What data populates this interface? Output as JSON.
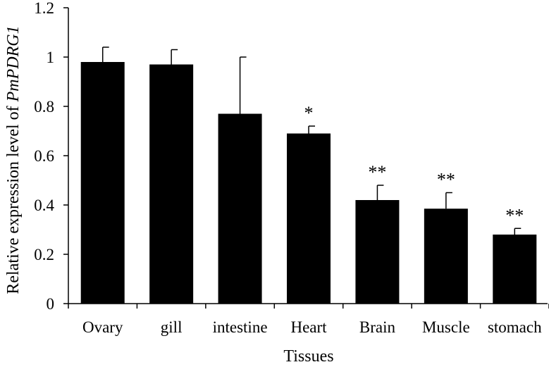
{
  "chart_data": {
    "type": "bar",
    "title": "",
    "xlabel": "Tissues",
    "ylabel_prefix": "Relative expression level of ",
    "ylabel_gene": "PmPDRG1",
    "categories": [
      "Ovary",
      "gill",
      "intestine",
      "Heart",
      "Brain",
      "Muscle",
      "stomach"
    ],
    "values": [
      0.98,
      0.97,
      0.77,
      0.69,
      0.42,
      0.385,
      0.28
    ],
    "errors": [
      0.06,
      0.06,
      0.23,
      0.03,
      0.06,
      0.065,
      0.025
    ],
    "significance": [
      "",
      "",
      "",
      "*",
      "**",
      "**",
      "**"
    ],
    "ylim": [
      0,
      1.2
    ],
    "yticks": [
      "0",
      "0.2",
      "0.4",
      "0.6",
      "0.8",
      "1",
      "1.2"
    ],
    "grid": false,
    "legend": "none",
    "colors": {
      "bar": "#000000",
      "axis": "#000000"
    }
  }
}
